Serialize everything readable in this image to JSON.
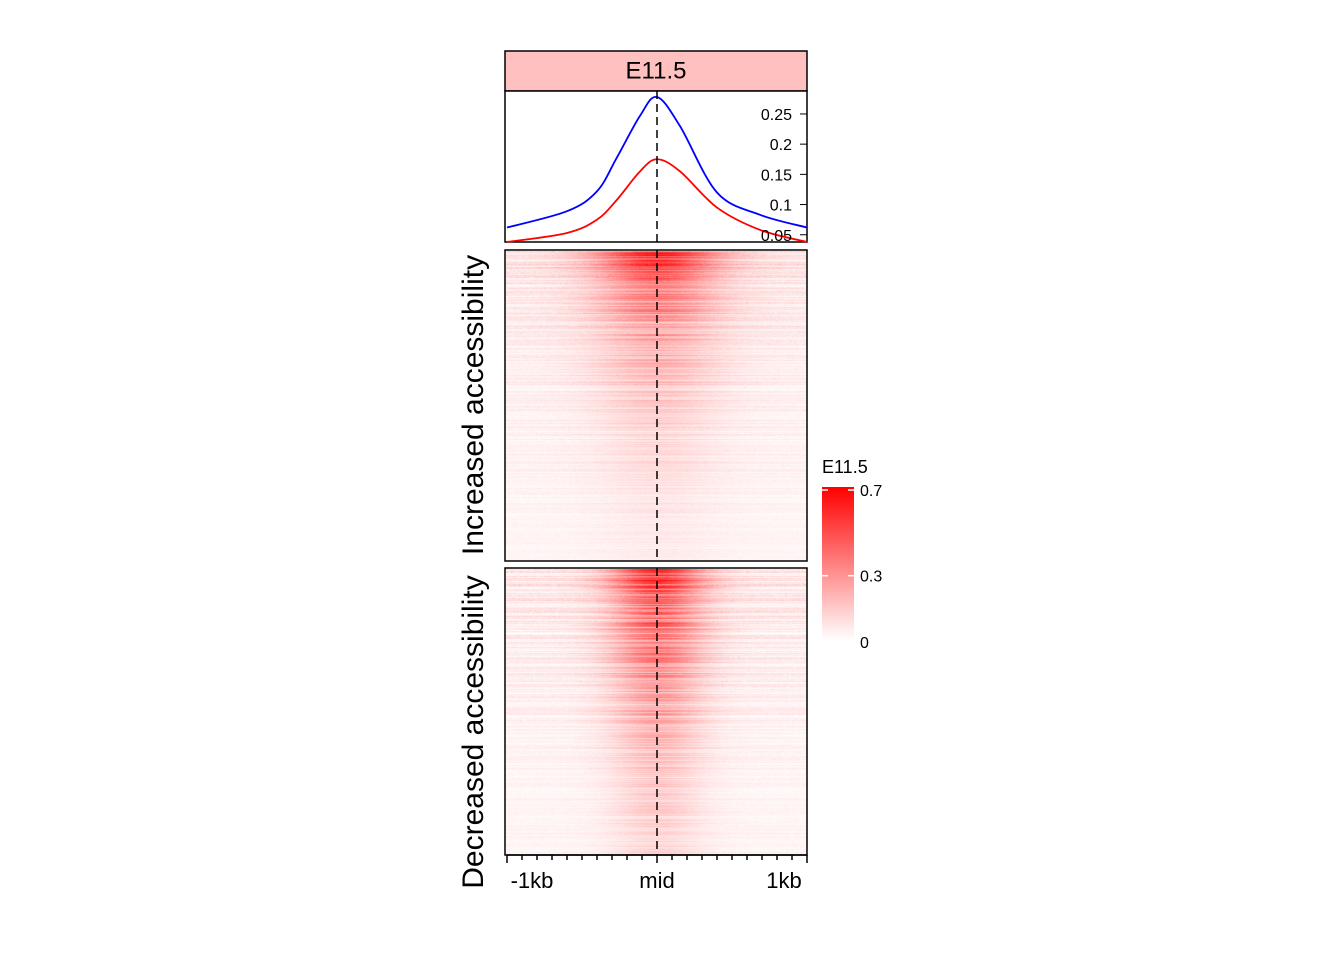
{
  "chart_data": {
    "type": "heatmap",
    "title": "E11.5",
    "profile": {
      "type": "line",
      "x_unit": "bp",
      "xlim": [
        -1000,
        1000
      ],
      "ylim": [
        0.038,
        0.288
      ],
      "yticks": [
        0.05,
        0.1,
        0.15,
        0.2,
        0.25
      ],
      "ytick_labels": [
        "0.05",
        "0.1",
        "0.15",
        "0.2",
        "0.25"
      ],
      "series": [
        {
          "name": "Increased accessibility",
          "color": "#0000ff",
          "x": [
            -1000,
            -600,
            -400,
            -267,
            -113,
            0,
            153,
            400,
            687,
            1000
          ],
          "y": [
            0.062,
            0.089,
            0.122,
            0.178,
            0.247,
            0.278,
            0.23,
            0.12,
            0.083,
            0.062
          ]
        },
        {
          "name": "Decreased accessibility",
          "color": "#ff0000",
          "x": [
            -1000,
            -600,
            -400,
            -267,
            -113,
            0,
            153,
            400,
            687,
            1000
          ],
          "y": [
            0.038,
            0.053,
            0.075,
            0.108,
            0.155,
            0.175,
            0.155,
            0.095,
            0.058,
            0.038
          ]
        }
      ]
    },
    "row_groups": [
      "Increased accessibility",
      "Decreased accessibility"
    ],
    "xtick_labels": [
      "-1kb",
      "mid",
      "1kb"
    ],
    "xticks": [
      -1000,
      0,
      1000
    ],
    "minor_tick_step": 100,
    "legend": {
      "title": "E11.5",
      "colors": [
        "#ffffff",
        "#ff0000"
      ],
      "range": [
        0,
        0.7
      ],
      "ticks": [
        0,
        0.3,
        0.7
      ],
      "tick_labels": [
        "0",
        "0.3",
        "0.7"
      ]
    },
    "strip_color": "#ffc0c0"
  }
}
